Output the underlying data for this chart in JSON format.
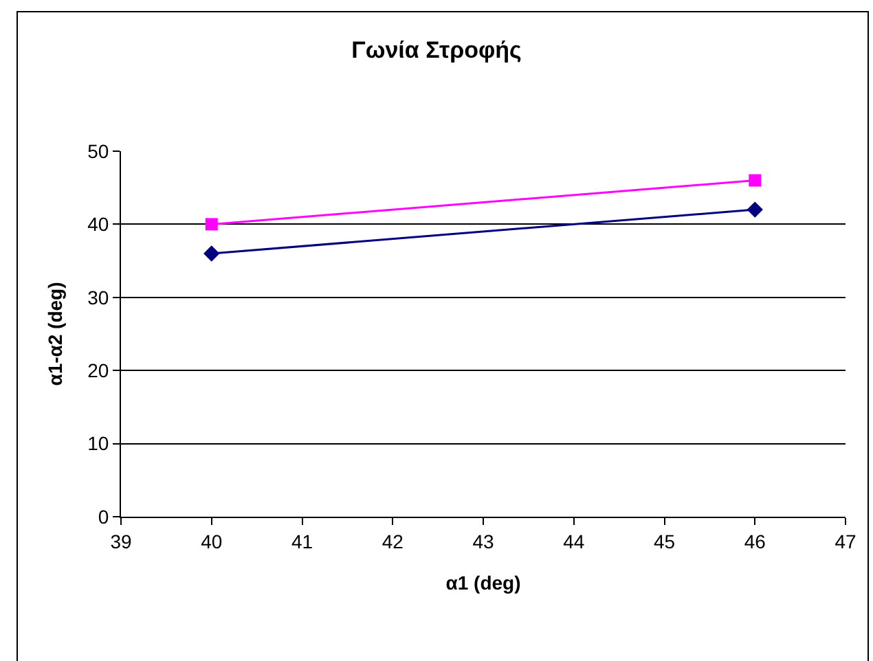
{
  "chart_data": {
    "type": "line",
    "title": "Γωνία Στροφής",
    "xlabel": "α1 (deg)",
    "ylabel": "α1-α2 (deg)",
    "x": [
      40,
      46
    ],
    "series": [
      {
        "color": "#000080",
        "marker": "diamond",
        "values": [
          36,
          42
        ]
      },
      {
        "color": "#ff00ff",
        "marker": "square",
        "values": [
          40,
          46
        ]
      }
    ],
    "xlim": [
      39,
      47
    ],
    "xticks": [
      39,
      40,
      41,
      42,
      43,
      44,
      45,
      46,
      47
    ],
    "ylim": [
      0,
      50
    ],
    "yticks": [
      0,
      10,
      20,
      30,
      40,
      50
    ],
    "grid": "y"
  }
}
